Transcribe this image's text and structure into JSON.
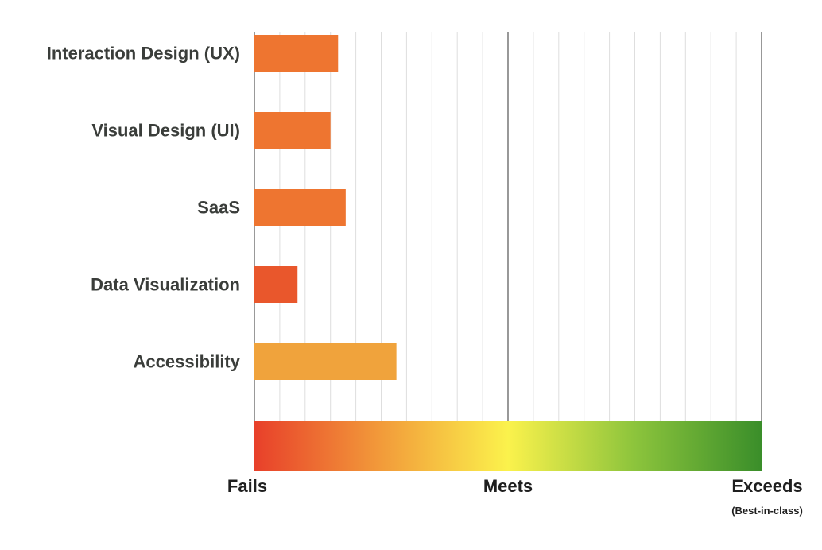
{
  "chart_data": {
    "type": "bar",
    "orientation": "horizontal",
    "categories": [
      "Interaction Design (UX)",
      "Visual Design (UI)",
      "SaaS",
      "Data Visualization",
      "Accessibility"
    ],
    "values": [
      3.3,
      3.0,
      3.6,
      1.7,
      5.6
    ],
    "xlim": [
      0,
      20
    ],
    "scale_labels": {
      "fails": "Fails",
      "meets": "Meets",
      "exceeds": "Exceeds",
      "exceeds_note": "(Best-in-class)"
    },
    "grid": true,
    "title": "",
    "xlabel": "",
    "ylabel": "",
    "colors": {
      "bar_default": "#ee7530",
      "bar_low": "#e9572c",
      "bar_high": "#f0a33c",
      "grid": "#dedede",
      "axis": "#555555",
      "gradient": [
        "#e8402a",
        "#f29b3a",
        "#fbf24c",
        "#8cc43c",
        "#3a8e2a"
      ]
    }
  }
}
